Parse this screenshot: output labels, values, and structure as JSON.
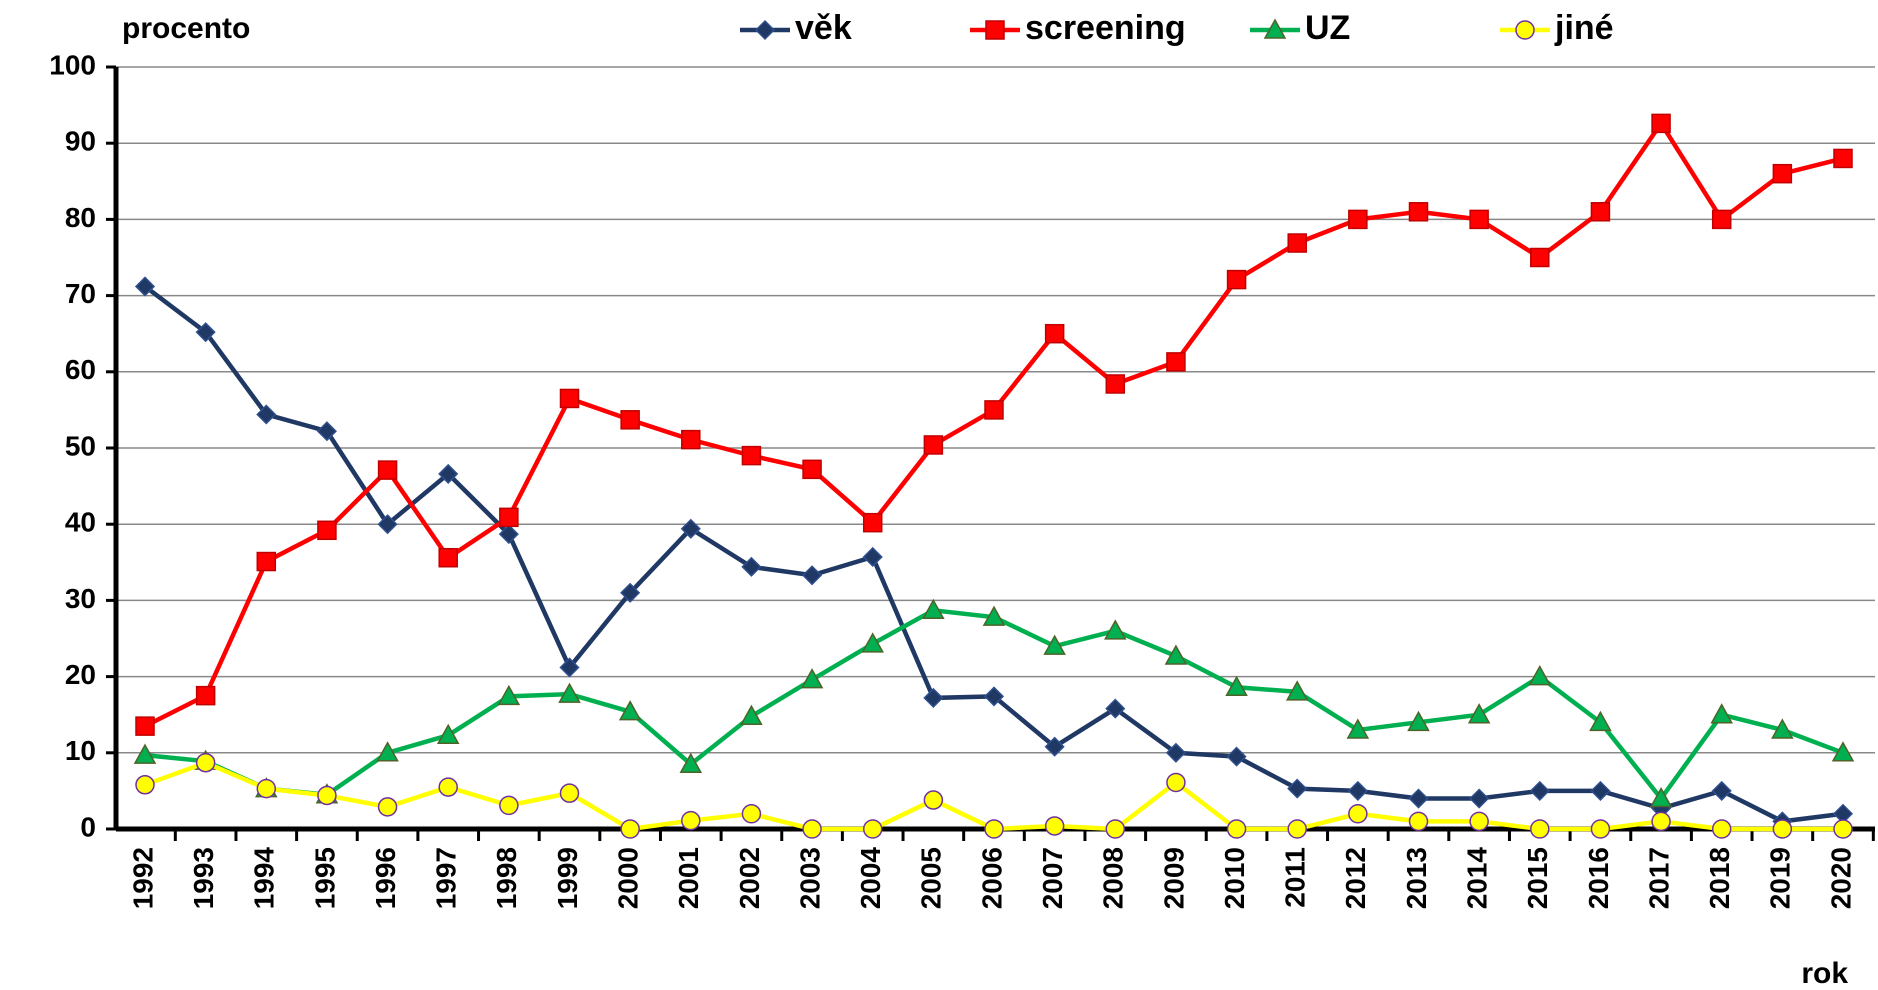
{
  "chart_data": {
    "type": "line",
    "y_label": "procento",
    "x_label": "rok",
    "categories": [
      "1992",
      "1993",
      "1994",
      "1995",
      "1996",
      "1997",
      "1998",
      "1999",
      "2000",
      "2001",
      "2002",
      "2003",
      "2004",
      "2005",
      "2006",
      "2007",
      "2008",
      "2009",
      "2010",
      "2011",
      "2012",
      "2013",
      "2014",
      "2015",
      "2016",
      "2017",
      "2018",
      "2019",
      "2020"
    ],
    "series": [
      {
        "name": "věk",
        "color": "#1f3864",
        "marker": "diamond",
        "values": [
          71.2,
          65.2,
          54.4,
          52.2,
          40,
          46.6,
          38.7,
          21.2,
          31,
          39.4,
          34.4,
          33.3,
          35.7,
          17.2,
          17.4,
          10.8,
          15.8,
          10,
          9.5,
          5.3,
          5,
          4,
          4,
          5,
          5,
          2.7,
          5,
          1,
          2
        ]
      },
      {
        "name": "screening",
        "color": "#ff0000",
        "marker": "square",
        "values": [
          13.5,
          17.5,
          35.1,
          39.2,
          47.1,
          35.6,
          40.9,
          56.5,
          53.7,
          51.1,
          49,
          47.2,
          40.2,
          50.4,
          55,
          65,
          58.4,
          61.3,
          72.1,
          76.9,
          80,
          81,
          80,
          75,
          81,
          92.6,
          80,
          86,
          88
        ]
      },
      {
        "name": "UZ",
        "color": "#00b050",
        "marker": "triangle",
        "values": [
          9.7,
          8.9,
          5.3,
          4.5,
          10,
          12.3,
          17.4,
          17.7,
          15.4,
          8.5,
          14.8,
          19.6,
          24.3,
          28.7,
          27.8,
          24,
          26,
          22.7,
          18.6,
          18,
          13,
          14,
          15,
          20,
          14,
          4,
          15,
          13,
          10
        ]
      },
      {
        "name": "jiné",
        "color": "#ffff00",
        "marker": "circle",
        "values": [
          5.8,
          8.7,
          5.3,
          4.4,
          2.9,
          5.5,
          3.1,
          4.7,
          0,
          1.1,
          2,
          0,
          0,
          3.8,
          0,
          0.4,
          0,
          6.1,
          0,
          0,
          2,
          1,
          1,
          0,
          0,
          1,
          0,
          0,
          0
        ]
      }
    ],
    "ylim": [
      0,
      100
    ],
    "yticks": [
      0,
      10,
      20,
      30,
      40,
      50,
      60,
      70,
      80,
      90,
      100
    ],
    "grid": true
  }
}
